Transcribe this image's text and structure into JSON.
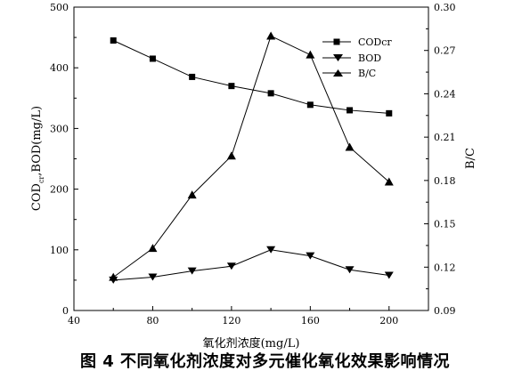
{
  "caption": "图 4   不同氧化剂浓度对多元催化氧化效果影响情况",
  "chart_data": {
    "type": "line",
    "xlabel": "氧化剂浓度(mg/L)",
    "ylabel_left": "COD",
    "ylabel_left_subscript": "cr",
    "ylabel_left_rest": ",BOD(mg/L)",
    "ylabel_right": "B/C",
    "xlim": [
      40,
      220
    ],
    "ylim_left": [
      0,
      500
    ],
    "ylim_right": [
      0.09,
      0.3
    ],
    "x_ticks": [
      40,
      80,
      120,
      160,
      200
    ],
    "x_ticks_minor": [
      60,
      100,
      140,
      180
    ],
    "y_left_ticks": [
      0,
      100,
      200,
      300,
      400,
      500
    ],
    "y_right_ticks": [
      "0.09",
      "0.12",
      "0.15",
      "0.18",
      "0.21",
      "0.24",
      "0.27",
      "0.30"
    ],
    "legend_position": "top-right",
    "x": [
      60,
      80,
      100,
      120,
      140,
      160,
      180,
      200
    ],
    "series": [
      {
        "name": "CODcr",
        "axis": "left",
        "marker": "square",
        "values": [
          445,
          415,
          385,
          370,
          358,
          339,
          330,
          325
        ]
      },
      {
        "name": "BOD",
        "axis": "left",
        "marker": "triangle-down",
        "values": [
          50,
          55,
          65,
          73,
          100,
          90,
          67,
          58
        ]
      },
      {
        "name": "B/C",
        "axis": "right",
        "marker": "triangle-up",
        "values": [
          0.113,
          0.133,
          0.17,
          0.197,
          0.28,
          0.267,
          0.203,
          0.179
        ]
      }
    ]
  }
}
